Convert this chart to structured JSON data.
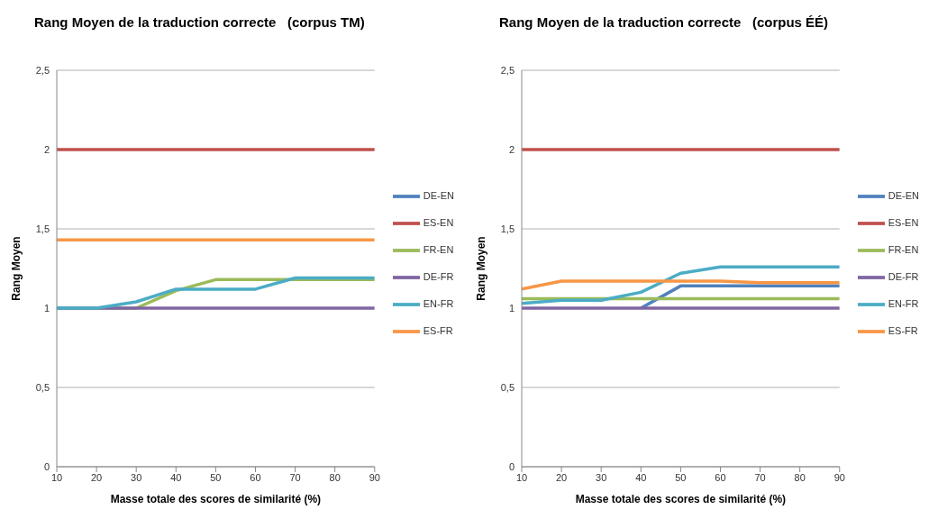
{
  "chart_data": [
    {
      "type": "line",
      "title": "Rang Moyen de la traduction correcte   (corpus TM)",
      "xlabel": "Masse totale des scores de similarité (%)",
      "ylabel": "Rang Moyen",
      "x": [
        10,
        20,
        30,
        40,
        50,
        60,
        70,
        80,
        90
      ],
      "xlim": [
        10,
        90
      ],
      "xticks": [
        10,
        20,
        30,
        40,
        50,
        60,
        70,
        80,
        90
      ],
      "ylim": [
        0,
        2.5
      ],
      "yticks": [
        0,
        {
          "value": 0.5,
          "label": "0,5"
        },
        1,
        {
          "value": 1.5,
          "label": "1,5"
        },
        2,
        {
          "value": 2.5,
          "label": "2,5"
        }
      ],
      "grid": "y",
      "legend": "right",
      "marker": "none",
      "line_style": "solid",
      "series": [
        {
          "name": "DE-EN",
          "color": "#4f81bd",
          "values": [
            null,
            null,
            null,
            null,
            null,
            null,
            null,
            null,
            null
          ]
        },
        {
          "name": "ES-EN",
          "color": "#c0504d",
          "values": [
            2,
            2,
            2,
            2,
            2,
            2,
            2,
            2,
            2
          ]
        },
        {
          "name": "FR-EN",
          "color": "#9bbb59",
          "values": [
            1,
            1,
            1,
            1.11,
            1.18,
            1.18,
            1.18,
            1.18,
            1.18
          ]
        },
        {
          "name": "DE-FR",
          "color": "#8064a2",
          "values": [
            1,
            1,
            1,
            1,
            1,
            1,
            1,
            1,
            1
          ]
        },
        {
          "name": "EN-FR",
          "color": "#4bacc6",
          "values": [
            1,
            1,
            1.04,
            1.12,
            1.12,
            1.12,
            1.19,
            1.19,
            1.19
          ]
        },
        {
          "name": "ES-FR",
          "color": "#f79646",
          "values": [
            1.43,
            1.43,
            1.43,
            1.43,
            1.43,
            1.43,
            1.43,
            1.43,
            1.43
          ]
        }
      ]
    },
    {
      "type": "line",
      "title": "Rang Moyen de la traduction correcte   (corpus ÉÉ)",
      "xlabel": "Masse totale des scores de similarité (%)",
      "ylabel": "Rang Moyen",
      "x": [
        10,
        20,
        30,
        40,
        50,
        60,
        70,
        80,
        90
      ],
      "xlim": [
        10,
        90
      ],
      "xticks": [
        10,
        20,
        30,
        40,
        50,
        60,
        70,
        80,
        90
      ],
      "ylim": [
        0,
        2.5
      ],
      "yticks": [
        0,
        {
          "value": 0.5,
          "label": "0,5"
        },
        1,
        {
          "value": 1.5,
          "label": "1,5"
        },
        2,
        {
          "value": 2.5,
          "label": "2,5"
        }
      ],
      "grid": "y",
      "legend": "right",
      "marker": "none",
      "line_style": "solid",
      "series": [
        {
          "name": "DE-EN",
          "color": "#4f81bd",
          "values": [
            null,
            null,
            null,
            1,
            1.14,
            1.14,
            1.14,
            1.14,
            1.14
          ]
        },
        {
          "name": "ES-EN",
          "color": "#c0504d",
          "values": [
            2,
            2,
            2,
            2,
            2,
            2,
            2,
            2,
            2
          ]
        },
        {
          "name": "FR-EN",
          "color": "#9bbb59",
          "values": [
            1.06,
            1.06,
            1.06,
            1.06,
            1.06,
            1.06,
            1.06,
            1.06,
            1.06
          ]
        },
        {
          "name": "DE-FR",
          "color": "#8064a2",
          "values": [
            1,
            1,
            1,
            1,
            1,
            1,
            1,
            1,
            1
          ]
        },
        {
          "name": "EN-FR",
          "color": "#4bacc6",
          "values": [
            1.03,
            1.05,
            1.05,
            1.1,
            1.22,
            1.26,
            1.26,
            1.26,
            1.26
          ]
        },
        {
          "name": "ES-FR",
          "color": "#f79646",
          "values": [
            1.12,
            1.17,
            1.17,
            1.17,
            1.17,
            1.17,
            1.16,
            1.16,
            1.16
          ]
        }
      ]
    }
  ]
}
